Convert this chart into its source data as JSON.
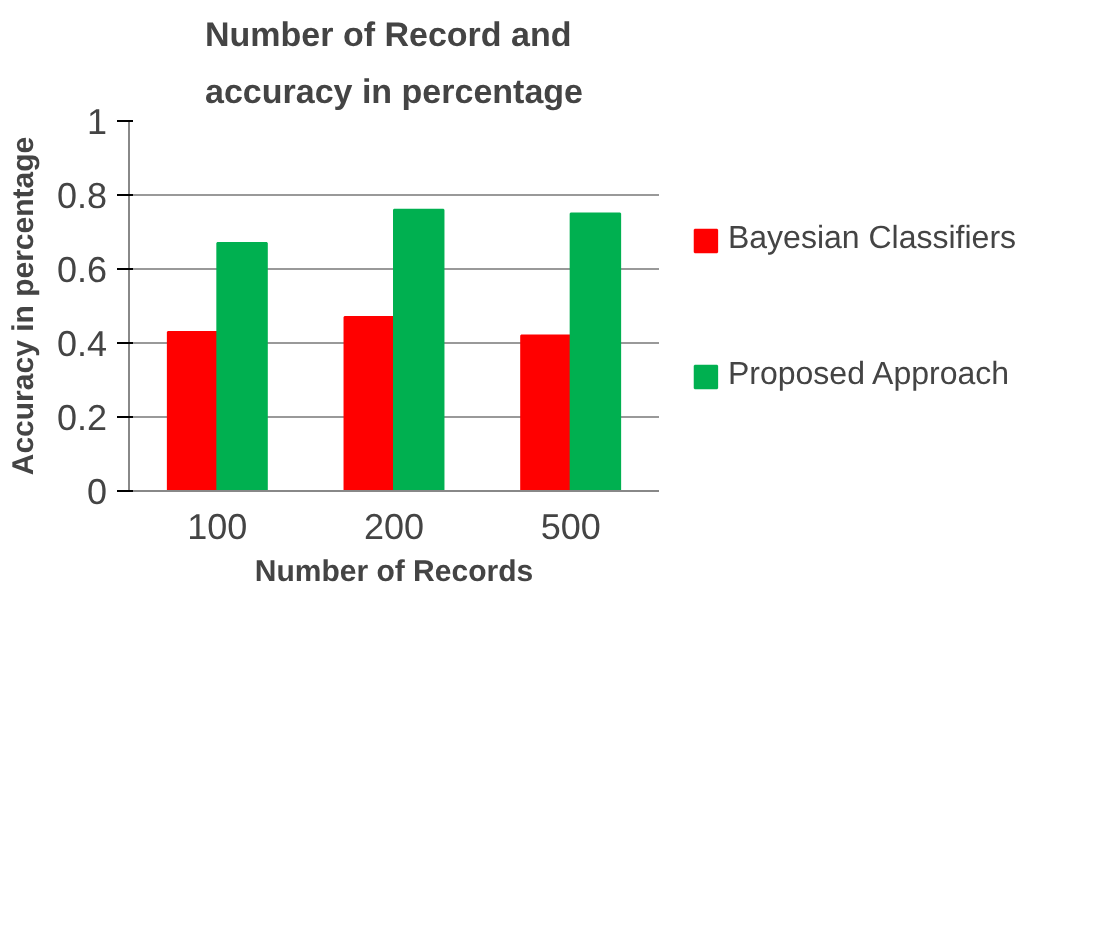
{
  "chart_data": {
    "type": "bar",
    "title": "Number of Record and accuracy in percentage",
    "xlabel": "Number of Records",
    "ylabel": "Accuracy in percentage",
    "categories": [
      "100",
      "200",
      "500"
    ],
    "series": [
      {
        "name": "Bayesian Classifiers",
        "color": "#ff0000",
        "values": [
          0.43,
          0.47,
          0.42
        ]
      },
      {
        "name": "Proposed Approach",
        "color": "#00b050",
        "values": [
          0.67,
          0.76,
          0.75
        ]
      }
    ],
    "ylim": [
      0,
      1
    ],
    "yticks": [
      0,
      0.2,
      0.4,
      0.6,
      0.8,
      1
    ],
    "grid": "y",
    "legend": "right"
  }
}
